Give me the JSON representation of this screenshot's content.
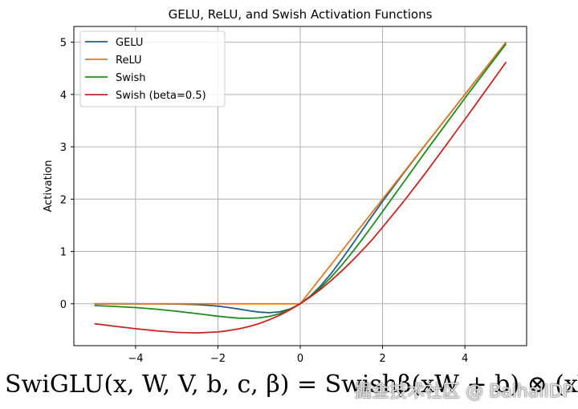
{
  "chart_data": {
    "type": "line",
    "title": "GELU, ReLU, and Swish Activation Functions",
    "xlabel": "",
    "ylabel": "Activation",
    "xlim": [
      -5.5,
      5.5
    ],
    "ylim": [
      -0.8,
      5.3
    ],
    "xticks": [
      -4,
      -2,
      0,
      2,
      4
    ],
    "xtick_labels": [
      "−4",
      "−2",
      "0",
      "2",
      "4"
    ],
    "yticks": [
      0,
      1,
      2,
      3,
      4,
      5
    ],
    "ytick_labels": [
      "0",
      "1",
      "2",
      "3",
      "4",
      "5"
    ],
    "grid": true,
    "legend_position": "top-left",
    "x": [
      -5,
      -4.5,
      -4,
      -3.5,
      -3,
      -2.5,
      -2,
      -1.75,
      -1.5,
      -1.25,
      -1,
      -0.75,
      -0.5,
      -0.25,
      0,
      0.25,
      0.5,
      0.75,
      1,
      1.25,
      1.5,
      1.75,
      2,
      2.5,
      3,
      3.5,
      4,
      4.5,
      5
    ],
    "series": [
      {
        "name": "GELU",
        "color": "#1f5f8b",
        "values": [
          0,
          0,
          0,
          -0.001,
          -0.004,
          -0.016,
          -0.045,
          -0.07,
          -0.1,
          -0.132,
          -0.159,
          -0.17,
          -0.154,
          -0.1,
          0,
          0.15,
          0.346,
          0.58,
          0.841,
          1.118,
          1.4,
          1.68,
          1.955,
          2.485,
          2.996,
          3.499,
          4.0,
          4.5,
          5.0
        ]
      },
      {
        "name": "ReLU",
        "color": "#e07b20",
        "values": [
          0,
          0,
          0,
          0,
          0,
          0,
          0,
          0,
          0,
          0,
          0,
          0,
          0,
          0,
          0,
          0.25,
          0.5,
          0.75,
          1,
          1.25,
          1.5,
          1.75,
          2,
          2.5,
          3,
          3.5,
          4,
          4.5,
          5
        ]
      },
      {
        "name": "Swish",
        "color": "#1f8a1f",
        "values": [
          -0.033,
          -0.05,
          -0.072,
          -0.102,
          -0.142,
          -0.189,
          -0.238,
          -0.258,
          -0.274,
          -0.278,
          -0.269,
          -0.24,
          -0.189,
          -0.109,
          0,
          0.141,
          0.311,
          0.51,
          0.731,
          0.972,
          1.226,
          1.492,
          1.762,
          2.31,
          2.858,
          3.395,
          3.928,
          4.451,
          4.967
        ]
      },
      {
        "name": "Swish (beta=0.5)",
        "color": "#c82423",
        "values": [
          -0.38,
          -0.43,
          -0.477,
          -0.517,
          -0.547,
          -0.557,
          -0.538,
          -0.514,
          -0.48,
          -0.437,
          -0.378,
          -0.305,
          -0.219,
          -0.117,
          0,
          0.133,
          0.281,
          0.444,
          0.622,
          0.812,
          1.014,
          1.227,
          1.462,
          1.944,
          2.453,
          2.986,
          3.524,
          4.07,
          4.62
        ]
      }
    ]
  },
  "formula_text": "SwiGLU(x, W, V, b, c, β) = Swishβ(xW + b) ⊗ (xV + c)",
  "watermark_text": "掘金技术社区 @ BaihaiIDP"
}
